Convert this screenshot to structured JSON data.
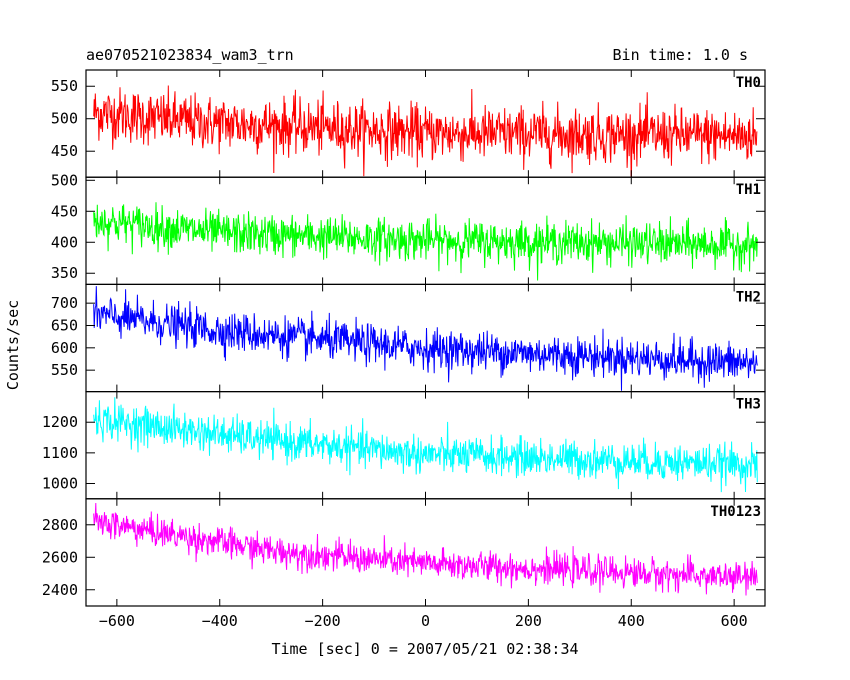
{
  "header": {
    "title": "ae070521023834_wam3_trn",
    "bin_time": "Bin time: 1.0 s"
  },
  "chart_data": {
    "type": "line",
    "xlabel": "Time [sec] 0 = 2007/05/21 02:38:34",
    "ylabel": "Counts/sec",
    "xlim": [
      -660,
      660
    ],
    "xticks": [
      -600,
      -400,
      -200,
      0,
      200,
      400,
      600
    ],
    "x_range": [
      -645,
      645
    ],
    "x_step": 1,
    "panels": [
      {
        "name": "TH0",
        "color": "#ff0000",
        "ylim": [
          410,
          575
        ],
        "yticks": [
          450,
          500,
          550
        ],
        "trend": [
          [
            -645,
            510
          ],
          [
            -450,
            495
          ],
          [
            0,
            478
          ],
          [
            645,
            473
          ]
        ],
        "noise": 38
      },
      {
        "name": "TH1",
        "color": "#00ff00",
        "ylim": [
          332,
          505
        ],
        "yticks": [
          350,
          400,
          450,
          500
        ],
        "trend": [
          [
            -645,
            435
          ],
          [
            -400,
            415
          ],
          [
            0,
            403
          ],
          [
            645,
            395
          ]
        ],
        "noise": 30
      },
      {
        "name": "TH2",
        "color": "#0000ff",
        "ylim": [
          502,
          742
        ],
        "yticks": [
          550,
          600,
          650,
          700
        ],
        "trend": [
          [
            -645,
            675
          ],
          [
            -400,
            638
          ],
          [
            0,
            598
          ],
          [
            645,
            565
          ]
        ],
        "noise": 40
      },
      {
        "name": "TH3",
        "color": "#00ffff",
        "ylim": [
          950,
          1300
        ],
        "yticks": [
          1000,
          1100,
          1200
        ],
        "trend": [
          [
            -645,
            1210
          ],
          [
            -300,
            1140
          ],
          [
            0,
            1095
          ],
          [
            645,
            1060
          ]
        ],
        "noise": 55
      },
      {
        "name": "TH0123",
        "color": "#ff00ff",
        "ylim": [
          2300,
          2960
        ],
        "yticks": [
          2400,
          2600,
          2800
        ],
        "trend": [
          [
            -645,
            2820
          ],
          [
            -300,
            2640
          ],
          [
            0,
            2560
          ],
          [
            645,
            2470
          ]
        ],
        "noise": 85
      }
    ]
  }
}
